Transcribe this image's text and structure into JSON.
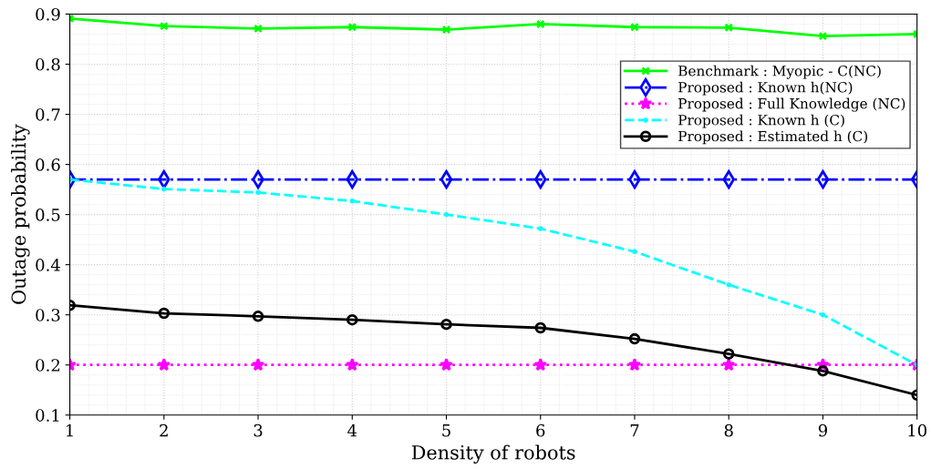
{
  "chart_data": {
    "type": "line",
    "xlabel": "Density of robots",
    "ylabel": "Outage probability",
    "x": [
      1,
      2,
      3,
      4,
      5,
      6,
      7,
      8,
      9,
      10
    ],
    "xlim": [
      1,
      10
    ],
    "xticks": [
      1,
      2,
      3,
      4,
      5,
      6,
      7,
      8,
      9,
      10
    ],
    "ylim": [
      0.1,
      0.9
    ],
    "yticks": [
      0.1,
      0.2,
      0.3,
      0.4,
      0.5,
      0.6,
      0.7,
      0.8,
      0.9
    ],
    "grid": true,
    "legend": "top right",
    "series": [
      {
        "name": "Benchmark : Myopic - C(NC)",
        "color": "#00ff00",
        "marker": "cross",
        "line_style": "solid",
        "values": [
          0.891,
          0.876,
          0.871,
          0.874,
          0.869,
          0.88,
          0.874,
          0.873,
          0.856,
          0.86
        ]
      },
      {
        "name": "Proposed : Known h(NC)",
        "color": "#0000ff",
        "marker": "diamond",
        "line_style": "dashdot",
        "values": [
          0.57,
          0.57,
          0.57,
          0.57,
          0.57,
          0.57,
          0.57,
          0.57,
          0.57,
          0.57
        ]
      },
      {
        "name": "Proposed : Full Knowledge (NC)",
        "color": "#ff00ff",
        "marker": "star",
        "line_style": "dotted",
        "values": [
          0.2,
          0.2,
          0.2,
          0.2,
          0.2,
          0.2,
          0.2,
          0.2,
          0.2,
          0.2
        ]
      },
      {
        "name": "Proposed : Known h (C)",
        "color": "#00ffff",
        "marker": "circle",
        "line_style": "dashed",
        "values": [
          0.57,
          0.551,
          0.544,
          0.527,
          0.5,
          0.472,
          0.426,
          0.36,
          0.3,
          0.2
        ]
      },
      {
        "name": "Proposed : Estimated h (C)",
        "color": "#000000",
        "marker": "circle",
        "line_style": "solid",
        "values": [
          0.319,
          0.303,
          0.297,
          0.29,
          0.281,
          0.274,
          0.252,
          0.222,
          0.188,
          0.14
        ]
      }
    ]
  }
}
